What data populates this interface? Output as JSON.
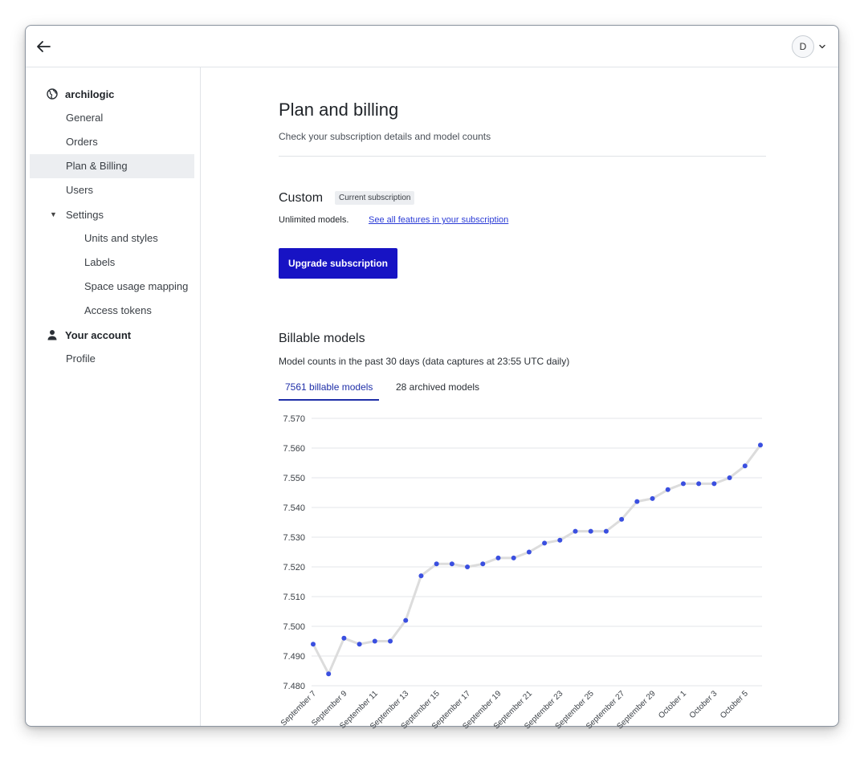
{
  "header": {
    "back_icon": "arrow-left-icon",
    "avatar_initial": "D",
    "avatar_menu_icon": "chevron-down-icon"
  },
  "sidebar": {
    "org": {
      "icon": "globe-icon",
      "label": "archilogic"
    },
    "items": [
      {
        "label": "General"
      },
      {
        "label": "Orders"
      },
      {
        "label": "Plan & Billing",
        "active": true
      },
      {
        "label": "Users"
      }
    ],
    "settings": {
      "label": "Settings",
      "expanded": true,
      "items": [
        {
          "label": "Units and styles"
        },
        {
          "label": "Labels"
        },
        {
          "label": "Space usage mapping"
        },
        {
          "label": "Access tokens"
        }
      ]
    },
    "account": {
      "icon": "user-icon",
      "label": "Your account",
      "items": [
        {
          "label": "Profile"
        }
      ]
    }
  },
  "main": {
    "title": "Plan and billing",
    "subtitle": "Check your subscription details and model counts",
    "plan": {
      "name": "Custom",
      "badge": "Current subscription",
      "description": "Unlimited models.",
      "link": "See all features in your subscription",
      "upgrade_label": "Upgrade subscription"
    },
    "billable": {
      "title": "Billable models",
      "subtitle": "Model counts in the past 30 days (data captures at 23:55 UTC daily)",
      "tabs": [
        {
          "label": "7561 billable models",
          "active": true
        },
        {
          "label": "28 archived models",
          "active": false
        }
      ]
    }
  },
  "colors": {
    "accent": "#1713c4",
    "tab_active": "#1f2fa8",
    "link": "#2a3bd6",
    "point": "#3a4fe0",
    "line": "#dcdcdc"
  },
  "chart_data": {
    "type": "line",
    "title": "",
    "xlabel": "",
    "ylabel": "",
    "ylim": [
      7.48,
      7.57
    ],
    "yticks": [
      "7.570",
      "7.560",
      "7.550",
      "7.540",
      "7.530",
      "7.520",
      "7.510",
      "7.500",
      "7.490",
      "7.480"
    ],
    "grid": true,
    "x": [
      "September 7",
      "September 8",
      "September 9",
      "September 10",
      "September 11",
      "September 12",
      "September 13",
      "September 14",
      "September 15",
      "September 16",
      "September 17",
      "September 18",
      "September 19",
      "September 20",
      "September 21",
      "September 22",
      "September 23",
      "September 24",
      "September 25",
      "September 26",
      "September 27",
      "September 28",
      "September 29",
      "September 30",
      "October 1",
      "October 2",
      "October 3",
      "October 4",
      "October 5",
      "October 6"
    ],
    "xtick_labels": [
      "September 7",
      "September 9",
      "September 11",
      "September 13",
      "September 15",
      "September 17",
      "September 19",
      "September 21",
      "September 23",
      "September 25",
      "September 27",
      "September 29",
      "October 1",
      "October 3",
      "October 5"
    ],
    "series": [
      {
        "values": [
          7.494,
          7.484,
          7.496,
          7.494,
          7.495,
          7.495,
          7.502,
          7.517,
          7.521,
          7.521,
          7.52,
          7.521,
          7.523,
          7.523,
          7.525,
          7.528,
          7.529,
          7.532,
          7.532,
          7.532,
          7.536,
          7.542,
          7.543,
          7.546,
          7.548,
          7.548,
          7.548,
          7.55,
          7.554,
          7.561
        ]
      }
    ]
  }
}
